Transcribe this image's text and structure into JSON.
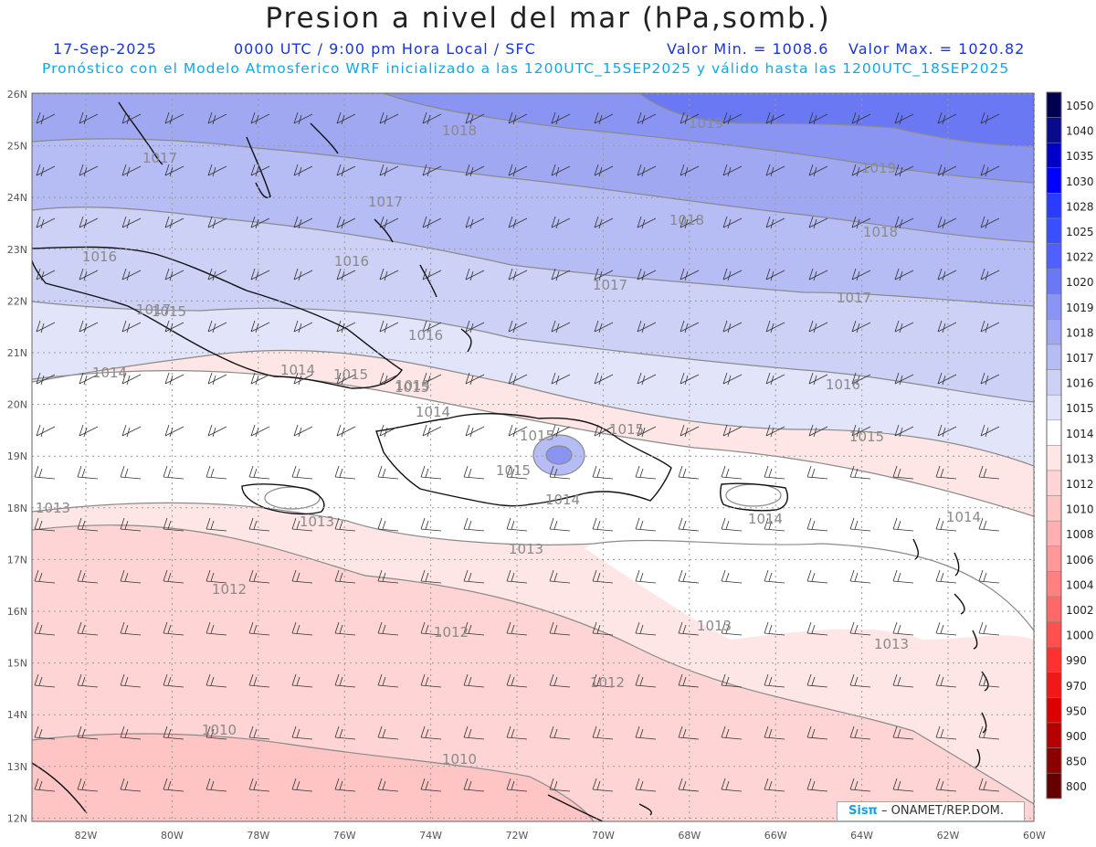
{
  "title": "Presion a nivel del mar (hPa,somb.)",
  "header": {
    "date": "17-Sep-2025",
    "time": "0000 UTC / 9:00 pm Hora Local / SFC",
    "min": "Valor Min. = 1008.6",
    "max": "Valor Max. = 1020.82",
    "model_line": "Pronóstico con el Modelo Atmosferico WRF inicializado a las 1200UTC_15SEP2025 y válido hasta las  1200UTC_18SEP2025"
  },
  "axes": {
    "lon_labels": [
      "82W",
      "80W",
      "78W",
      "76W",
      "74W",
      "72W",
      "70W",
      "68W",
      "66W",
      "64W",
      "62W",
      "60W"
    ],
    "lat_labels": [
      "26N",
      "25N",
      "24N",
      "23N",
      "22N",
      "21N",
      "20N",
      "19N",
      "18N",
      "17N",
      "16N",
      "15N",
      "14N",
      "13N",
      "12N"
    ]
  },
  "colorbar": {
    "labels": [
      "1050",
      "1040",
      "1035",
      "1030",
      "1028",
      "1025",
      "1022",
      "1020",
      "1019",
      "1018",
      "1017",
      "1016",
      "1015",
      "1014",
      "1013",
      "1012",
      "1010",
      "1008",
      "1006",
      "1004",
      "1002",
      "1000",
      "990",
      "970",
      "950",
      "900",
      "850",
      "800"
    ],
    "colors": [
      "#000050",
      "#0a0a8c",
      "#0000c8",
      "#0000ff",
      "#2a3cff",
      "#3a50ff",
      "#5060ff",
      "#6a78f4",
      "#8a94f2",
      "#a0a8f2",
      "#b6bcf4",
      "#cdd1f6",
      "#e2e5fa",
      "#ffffff",
      "#ffe6e6",
      "#ffd4d4",
      "#ffc4c4",
      "#ffb0b0",
      "#ff9898",
      "#ff8080",
      "#ff6868",
      "#ff5050",
      "#ff3030",
      "#f01818",
      "#dc0000",
      "#b40000",
      "#8c0000",
      "#640000"
    ]
  },
  "isobar_labels": [
    "1018",
    "1019",
    "1019",
    "1017",
    "1017",
    "1017",
    "1018",
    "1018",
    "1016",
    "1016",
    "1017",
    "1017",
    "1016",
    "1016",
    "1015",
    "1015",
    "1014",
    "1014",
    "1015",
    "1015",
    "1014",
    "1015",
    "1015",
    "1015",
    "1015",
    "1014",
    "1013",
    "1013",
    "1014",
    "1014",
    "1013",
    "1012",
    "1012",
    "1013",
    "1013",
    "1012",
    "1010",
    "1010"
  ],
  "logo": {
    "brand": "Sisπ",
    "text": "– ONAMET/REP.DOM."
  }
}
